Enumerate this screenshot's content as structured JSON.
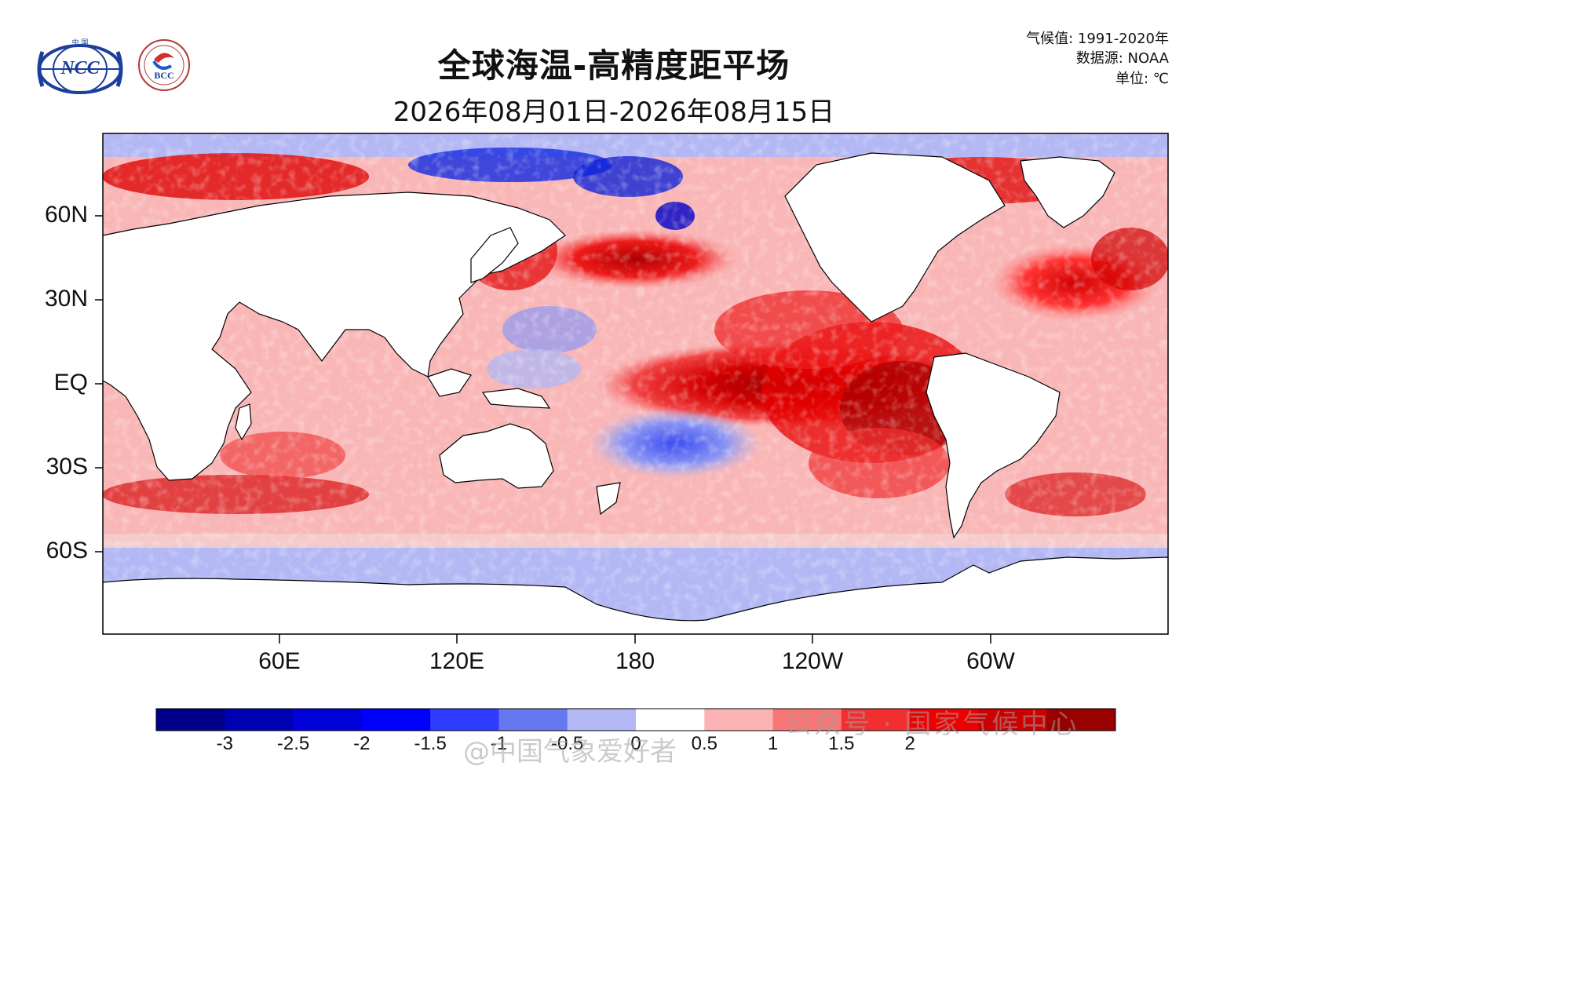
{
  "header": {
    "title": "全球海温-高精度距平场",
    "subtitle": "2026年08月01日-2026年08月15日"
  },
  "meta": {
    "climatology": "气候值: 1991-2020年",
    "source": "数据源: NOAA",
    "unit": "单位: ℃"
  },
  "logos": {
    "ncc_text": "NCC",
    "ncc_top": "中 国",
    "bcc_text": "BCC"
  },
  "axes": {
    "lat_labels": [
      "60N",
      "30N",
      "EQ",
      "30S",
      "60S"
    ],
    "lon_labels": [
      "60E",
      "120E",
      "180",
      "120W",
      "60W"
    ]
  },
  "colorbar": {
    "colors": [
      "#00008b",
      "#0000b3",
      "#0000d9",
      "#0000ff",
      "#2e3cff",
      "#6677f0",
      "#b3b8f4",
      "#ffffff",
      "#fbb3b3",
      "#f77777",
      "#f22f2f",
      "#ee0000",
      "#cc0000",
      "#990000"
    ],
    "tick_labels": [
      "-3",
      "-2.5",
      "-2",
      "-1.5",
      "-1",
      "-0.5",
      "0",
      "0.5",
      "1",
      "1.5",
      "2"
    ]
  },
  "watermark": {
    "weibo": "@中国气象爱好者",
    "wechat": "公众号 · 国家气候中心"
  }
}
